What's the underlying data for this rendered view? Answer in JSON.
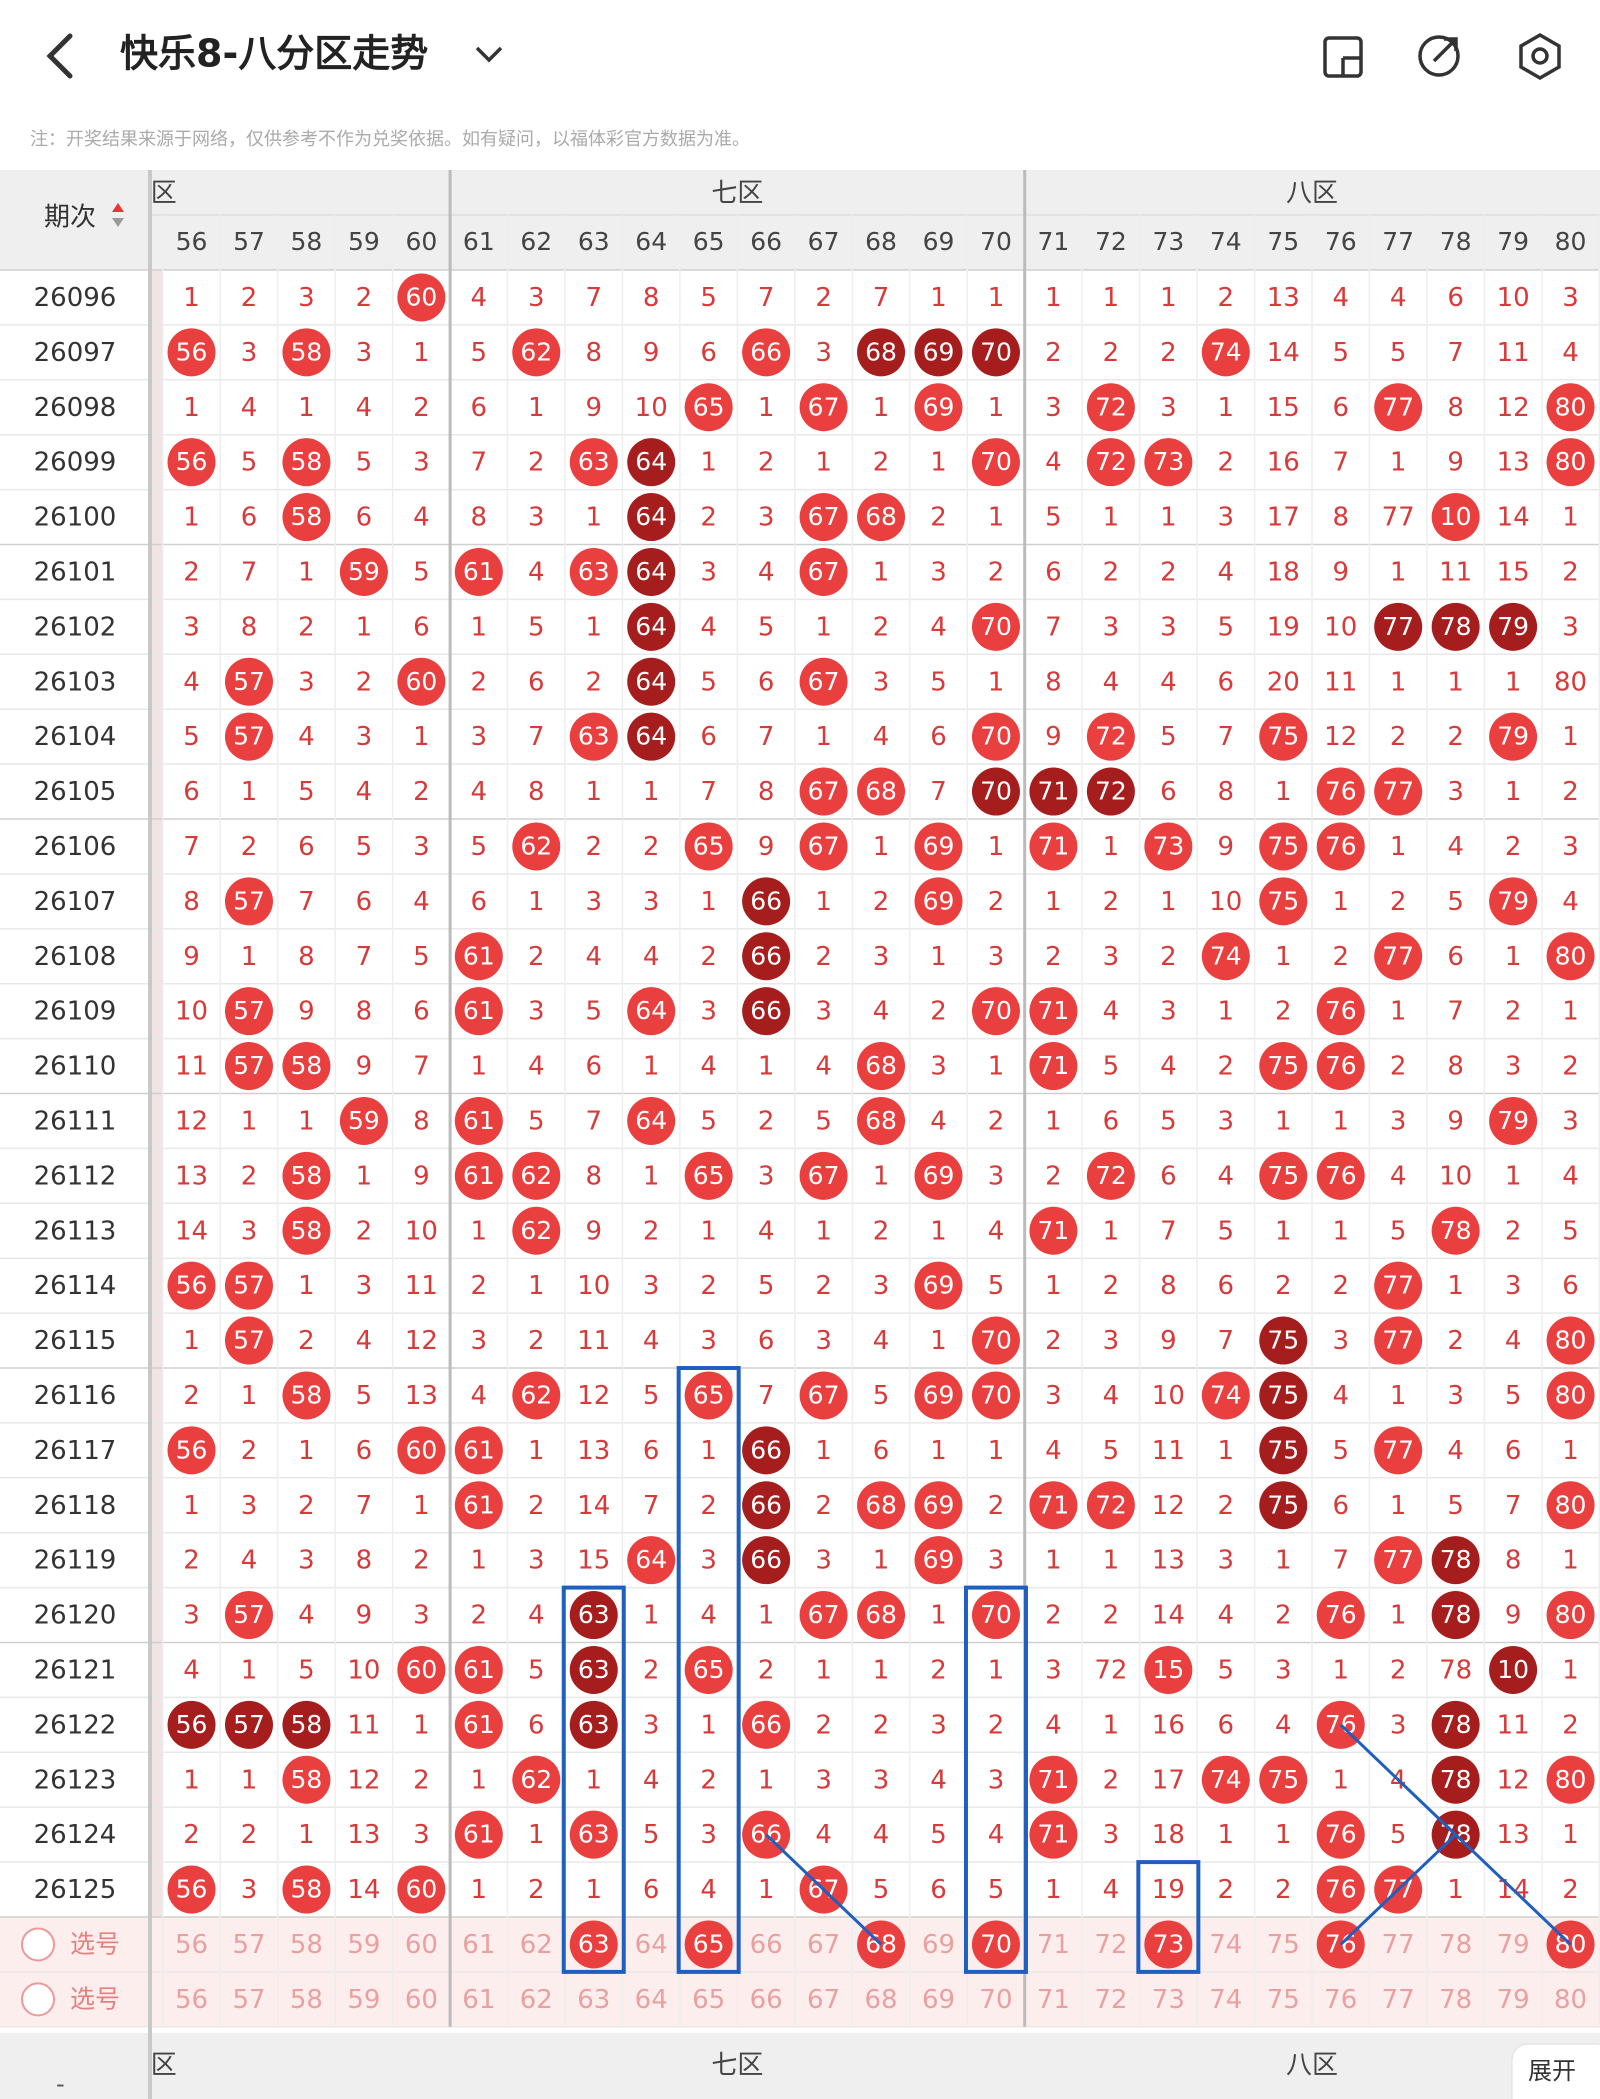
{
  "header": {
    "title": "快乐8-八分区走势"
  },
  "notice": "注：开奖结果来源于网络，仅供参考不作为兑奖依据。如有疑问，以福体彩官方数据为准。",
  "table": {
    "period_label": "期次",
    "zones": [
      "区",
      "七区",
      "八区"
    ],
    "columns": [
      56,
      57,
      58,
      59,
      60,
      61,
      62,
      63,
      64,
      65,
      66,
      67,
      68,
      69,
      70,
      71,
      72,
      73,
      74,
      75,
      76,
      77,
      78,
      79,
      80
    ],
    "rows": [
      {
        "period": 26096,
        "cells": [
          1,
          2,
          3,
          2,
          60,
          4,
          3,
          7,
          8,
          5,
          7,
          2,
          7,
          1,
          1,
          1,
          1,
          1,
          2,
          13,
          4,
          4,
          6,
          10,
          3
        ],
        "hits": "....r...................."
      },
      {
        "period": 26097,
        "cells": [
          56,
          3,
          58,
          3,
          1,
          5,
          62,
          8,
          9,
          6,
          66,
          3,
          68,
          69,
          70,
          2,
          2,
          2,
          74,
          14,
          5,
          5,
          7,
          11,
          4
        ],
        "hits": "r.r...r...r.ddd...r......"
      },
      {
        "period": 26098,
        "cells": [
          1,
          4,
          1,
          4,
          2,
          6,
          1,
          9,
          10,
          65,
          1,
          67,
          1,
          69,
          1,
          3,
          72,
          3,
          1,
          15,
          6,
          77,
          8,
          12,
          80
        ],
        "hits": ".........r.r.r..r....r..r"
      },
      {
        "period": 26099,
        "cells": [
          56,
          5,
          58,
          5,
          3,
          7,
          2,
          63,
          64,
          1,
          2,
          1,
          2,
          1,
          70,
          4,
          72,
          73,
          2,
          16,
          7,
          1,
          9,
          13,
          80
        ],
        "hits": "r.r....rd.....r.rr......r"
      },
      {
        "period": 26100,
        "cells": [
          1,
          6,
          58,
          6,
          4,
          8,
          3,
          1,
          64,
          2,
          3,
          67,
          68,
          2,
          1,
          5,
          1,
          1,
          3,
          17,
          8,
          77,
          10,
          14,
          1
        ],
        "hits": "..r.....d..rr.........r..."
      },
      {
        "period": 26101,
        "cells": [
          2,
          7,
          1,
          59,
          5,
          61,
          4,
          63,
          64,
          3,
          4,
          67,
          1,
          3,
          2,
          6,
          2,
          2,
          4,
          18,
          9,
          1,
          11,
          15,
          2
        ],
        "hits": "...r.r.rd..r............."
      },
      {
        "period": 26102,
        "cells": [
          3,
          8,
          2,
          1,
          6,
          1,
          5,
          1,
          64,
          4,
          5,
          1,
          2,
          4,
          70,
          7,
          3,
          3,
          5,
          19,
          10,
          77,
          78,
          79,
          3
        ],
        "hits": "........d.....r......ddd."
      },
      {
        "period": 26103,
        "cells": [
          4,
          57,
          3,
          2,
          60,
          2,
          6,
          2,
          64,
          5,
          6,
          67,
          3,
          5,
          1,
          8,
          4,
          4,
          6,
          20,
          11,
          1,
          1,
          1,
          80
        ],
        "hits": ".r..r...d..r.............r"
      },
      {
        "period": 26104,
        "cells": [
          5,
          57,
          4,
          3,
          1,
          3,
          7,
          63,
          64,
          6,
          7,
          1,
          4,
          6,
          70,
          9,
          72,
          5,
          7,
          75,
          12,
          2,
          2,
          79,
          1
        ],
        "hits": ".r.....rd.....r.r..r...r."
      },
      {
        "period": 26105,
        "cells": [
          6,
          1,
          5,
          4,
          2,
          4,
          8,
          1,
          1,
          7,
          8,
          67,
          68,
          7,
          70,
          71,
          72,
          6,
          8,
          1,
          76,
          77,
          3,
          1,
          2
        ],
        "hits": "...........rr.ddd...rr..."
      },
      {
        "period": 26106,
        "cells": [
          7,
          2,
          6,
          5,
          3,
          5,
          62,
          2,
          2,
          65,
          9,
          67,
          1,
          69,
          1,
          71,
          1,
          73,
          9,
          75,
          76,
          1,
          4,
          2,
          3
        ],
        "hits": "......r..r.r.r.r.r.rr...."
      },
      {
        "period": 26107,
        "cells": [
          8,
          57,
          7,
          6,
          4,
          6,
          1,
          3,
          3,
          1,
          66,
          1,
          2,
          69,
          2,
          1,
          2,
          1,
          10,
          75,
          1,
          2,
          5,
          79,
          4
        ],
        "hits": ".r........d..r.....r...r."
      },
      {
        "period": 26108,
        "cells": [
          9,
          1,
          8,
          7,
          5,
          61,
          2,
          4,
          4,
          2,
          66,
          2,
          3,
          1,
          3,
          2,
          3,
          2,
          74,
          1,
          2,
          77,
          6,
          1,
          80
        ],
        "hits": ".....r....d.......r..r..r"
      },
      {
        "period": 26109,
        "cells": [
          10,
          57,
          9,
          8,
          6,
          61,
          3,
          5,
          64,
          3,
          66,
          3,
          4,
          2,
          70,
          71,
          4,
          3,
          1,
          2,
          76,
          1,
          7,
          2,
          1
        ],
        "hits": ".r...r..r.d...rr....r...."
      },
      {
        "period": 26110,
        "cells": [
          11,
          57,
          58,
          9,
          7,
          1,
          4,
          6,
          1,
          4,
          1,
          4,
          68,
          3,
          1,
          71,
          5,
          4,
          2,
          75,
          76,
          2,
          8,
          3,
          2
        ],
        "hits": ".rr.........r..r...rr...."
      },
      {
        "period": 26111,
        "cells": [
          12,
          1,
          1,
          59,
          8,
          61,
          5,
          7,
          64,
          5,
          2,
          5,
          68,
          4,
          2,
          1,
          6,
          5,
          3,
          1,
          1,
          3,
          9,
          79,
          3
        ],
        "hits": "...r.r..r...r..........r."
      },
      {
        "period": 26112,
        "cells": [
          13,
          2,
          58,
          1,
          9,
          61,
          62,
          8,
          1,
          65,
          3,
          67,
          1,
          69,
          3,
          2,
          72,
          6,
          4,
          75,
          76,
          4,
          10,
          1,
          4
        ],
        "hits": "..r..rr..r.r.r..r..rr...."
      },
      {
        "period": 26113,
        "cells": [
          14,
          3,
          58,
          2,
          10,
          1,
          62,
          9,
          2,
          1,
          4,
          1,
          2,
          1,
          4,
          71,
          1,
          7,
          5,
          1,
          1,
          5,
          78,
          2,
          5
        ],
        "hits": "..r...r........r......r.."
      },
      {
        "period": 26114,
        "cells": [
          56,
          57,
          1,
          3,
          11,
          2,
          1,
          10,
          3,
          2,
          5,
          2,
          3,
          69,
          5,
          1,
          2,
          8,
          6,
          2,
          2,
          77,
          1,
          3,
          6
        ],
        "hits": "rr...........r.......r..."
      },
      {
        "period": 26115,
        "cells": [
          1,
          57,
          2,
          4,
          12,
          3,
          2,
          11,
          4,
          3,
          6,
          3,
          4,
          1,
          70,
          2,
          3,
          9,
          7,
          75,
          3,
          77,
          2,
          4,
          80
        ],
        "hits": ".r............r....d.r..r"
      },
      {
        "period": 26116,
        "cells": [
          2,
          1,
          58,
          5,
          13,
          4,
          62,
          12,
          5,
          65,
          7,
          67,
          5,
          69,
          70,
          3,
          4,
          10,
          74,
          75,
          4,
          1,
          3,
          5,
          80
        ],
        "hits": "..r...r..r.r.rr...rd....r"
      },
      {
        "period": 26117,
        "cells": [
          56,
          2,
          1,
          6,
          60,
          61,
          1,
          13,
          6,
          1,
          66,
          1,
          6,
          1,
          1,
          4,
          5,
          11,
          1,
          75,
          5,
          77,
          4,
          6,
          1
        ],
        "hits": "r...rr....d........d.r..."
      },
      {
        "period": 26118,
        "cells": [
          1,
          3,
          2,
          7,
          1,
          61,
          2,
          14,
          7,
          2,
          66,
          2,
          68,
          69,
          2,
          71,
          72,
          12,
          2,
          75,
          6,
          1,
          5,
          7,
          80
        ],
        "hits": ".....r....d.rr.rr..d....r"
      },
      {
        "period": 26119,
        "cells": [
          2,
          4,
          3,
          8,
          2,
          1,
          3,
          15,
          64,
          3,
          66,
          3,
          1,
          69,
          3,
          1,
          1,
          13,
          3,
          1,
          7,
          77,
          78,
          8,
          1
        ],
        "hits": "........r.d..r.......rd.."
      },
      {
        "period": 26120,
        "cells": [
          3,
          57,
          4,
          9,
          3,
          2,
          4,
          63,
          1,
          4,
          1,
          67,
          68,
          1,
          70,
          2,
          2,
          14,
          4,
          2,
          76,
          1,
          78,
          9,
          80
        ],
        "hits": ".r.....d...rr.r.....r.d.r"
      },
      {
        "period": 26121,
        "cells": [
          4,
          1,
          5,
          10,
          60,
          61,
          5,
          63,
          2,
          65,
          2,
          1,
          1,
          2,
          1,
          3,
          72,
          15,
          5,
          3,
          1,
          2,
          78,
          10,
          1
        ],
        "hits": "....rr.d.r.......r.....d.."
      },
      {
        "period": 26122,
        "cells": [
          56,
          57,
          58,
          11,
          1,
          61,
          6,
          63,
          3,
          1,
          66,
          2,
          2,
          3,
          2,
          4,
          1,
          16,
          6,
          4,
          76,
          3,
          78,
          11,
          2
        ],
        "hits": "ddd..r.d..r.........r.d.."
      },
      {
        "period": 26123,
        "cells": [
          1,
          1,
          58,
          12,
          2,
          1,
          62,
          1,
          4,
          2,
          1,
          3,
          3,
          4,
          3,
          71,
          2,
          17,
          74,
          75,
          1,
          4,
          78,
          12,
          80
        ],
        "hits": "..r...r........r..rr..d.r"
      },
      {
        "period": 26124,
        "cells": [
          2,
          2,
          1,
          13,
          3,
          61,
          1,
          63,
          5,
          3,
          66,
          4,
          4,
          5,
          4,
          71,
          3,
          18,
          1,
          1,
          76,
          5,
          78,
          13,
          1
        ],
        "hits": ".....r.r..r....r....r.d.."
      },
      {
        "period": 26125,
        "cells": [
          56,
          3,
          58,
          14,
          60,
          1,
          2,
          1,
          6,
          4,
          1,
          67,
          5,
          6,
          5,
          1,
          4,
          19,
          2,
          2,
          76,
          77,
          1,
          14,
          2
        ],
        "hits": "r.r.r......r........rr..."
      }
    ],
    "select_rows": [
      {
        "label": "选号",
        "hits": ".......r.r..r.r..r..r...r"
      },
      {
        "label": "选号",
        "hits": "........................."
      }
    ]
  },
  "footer": {
    "dash": "-",
    "expand": "展开"
  }
}
